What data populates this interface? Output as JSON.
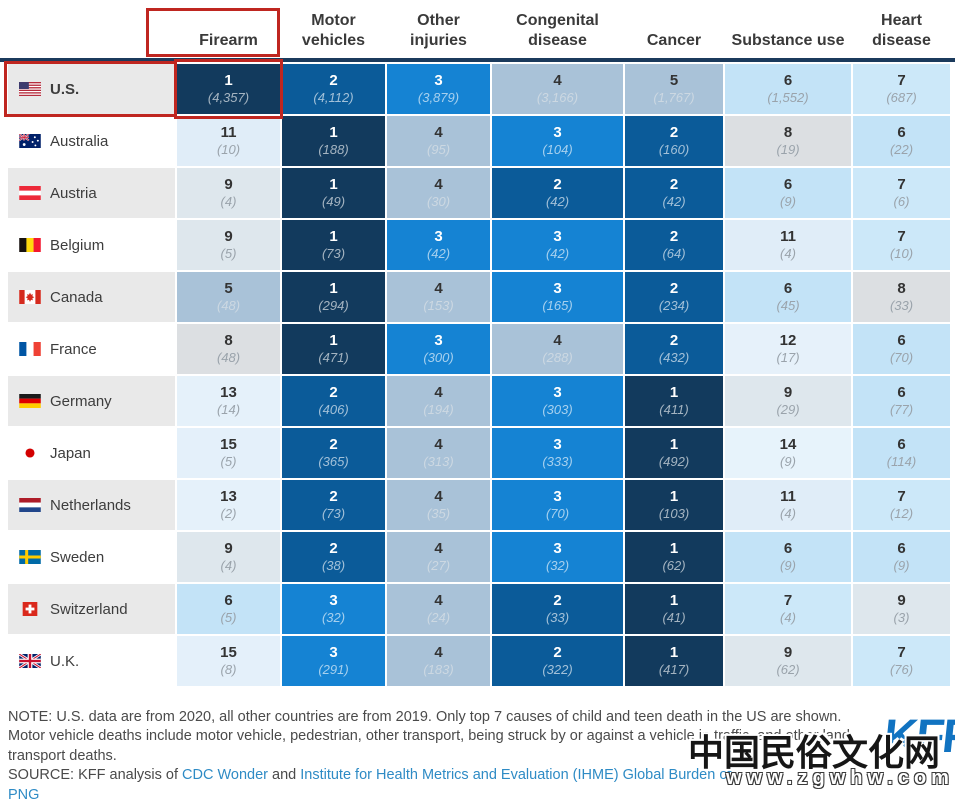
{
  "chart_data": {
    "type": "heatmap",
    "description": "Ranking of causes of child and teen death by country; cell shade encodes rank (darker blue = higher rank), value in parentheses = number of deaths",
    "columns": [
      "Firearm",
      "Motor vehicles",
      "Other injuries",
      "Congenital disease",
      "Cancer",
      "Substance use",
      "Heart disease"
    ],
    "highlight": {
      "column": "Firearm",
      "row": "U.S."
    },
    "rows": [
      {
        "country": "U.S.",
        "flag": "us",
        "cells": [
          {
            "rank": 1,
            "deaths": "(4,357)"
          },
          {
            "rank": 2,
            "deaths": "(4,112)"
          },
          {
            "rank": 3,
            "deaths": "(3,879)"
          },
          {
            "rank": 4,
            "deaths": "(3,166)"
          },
          {
            "rank": 5,
            "deaths": "(1,767)"
          },
          {
            "rank": 6,
            "deaths": "(1,552)"
          },
          {
            "rank": 7,
            "deaths": "(687)"
          }
        ]
      },
      {
        "country": "Australia",
        "flag": "australia",
        "cells": [
          {
            "rank": 11,
            "deaths": "(10)"
          },
          {
            "rank": 1,
            "deaths": "(188)"
          },
          {
            "rank": 4,
            "deaths": "(95)"
          },
          {
            "rank": 3,
            "deaths": "(104)"
          },
          {
            "rank": 2,
            "deaths": "(160)"
          },
          {
            "rank": 8,
            "deaths": "(19)"
          },
          {
            "rank": 6,
            "deaths": "(22)"
          }
        ]
      },
      {
        "country": "Austria",
        "flag": "austria",
        "cells": [
          {
            "rank": 9,
            "deaths": "(4)"
          },
          {
            "rank": 1,
            "deaths": "(49)"
          },
          {
            "rank": 4,
            "deaths": "(30)"
          },
          {
            "rank": 2,
            "deaths": "(42)"
          },
          {
            "rank": 2,
            "deaths": "(42)"
          },
          {
            "rank": 6,
            "deaths": "(9)"
          },
          {
            "rank": 7,
            "deaths": "(6)"
          }
        ]
      },
      {
        "country": "Belgium",
        "flag": "belgium",
        "cells": [
          {
            "rank": 9,
            "deaths": "(5)"
          },
          {
            "rank": 1,
            "deaths": "(73)"
          },
          {
            "rank": 3,
            "deaths": "(42)"
          },
          {
            "rank": 3,
            "deaths": "(42)"
          },
          {
            "rank": 2,
            "deaths": "(64)"
          },
          {
            "rank": 11,
            "deaths": "(4)"
          },
          {
            "rank": 7,
            "deaths": "(10)"
          }
        ]
      },
      {
        "country": "Canada",
        "flag": "canada",
        "cells": [
          {
            "rank": 5,
            "deaths": "(48)"
          },
          {
            "rank": 1,
            "deaths": "(294)"
          },
          {
            "rank": 4,
            "deaths": "(153)"
          },
          {
            "rank": 3,
            "deaths": "(165)"
          },
          {
            "rank": 2,
            "deaths": "(234)"
          },
          {
            "rank": 6,
            "deaths": "(45)"
          },
          {
            "rank": 8,
            "deaths": "(33)"
          }
        ]
      },
      {
        "country": "France",
        "flag": "france",
        "cells": [
          {
            "rank": 8,
            "deaths": "(48)"
          },
          {
            "rank": 1,
            "deaths": "(471)"
          },
          {
            "rank": 3,
            "deaths": "(300)"
          },
          {
            "rank": 4,
            "deaths": "(288)"
          },
          {
            "rank": 2,
            "deaths": "(432)"
          },
          {
            "rank": 12,
            "deaths": "(17)"
          },
          {
            "rank": 6,
            "deaths": "(70)"
          }
        ]
      },
      {
        "country": "Germany",
        "flag": "germany",
        "cells": [
          {
            "rank": 13,
            "deaths": "(14)"
          },
          {
            "rank": 2,
            "deaths": "(406)"
          },
          {
            "rank": 4,
            "deaths": "(194)"
          },
          {
            "rank": 3,
            "deaths": "(303)"
          },
          {
            "rank": 1,
            "deaths": "(411)"
          },
          {
            "rank": 9,
            "deaths": "(29)"
          },
          {
            "rank": 6,
            "deaths": "(77)"
          }
        ]
      },
      {
        "country": "Japan",
        "flag": "japan",
        "cells": [
          {
            "rank": 15,
            "deaths": "(5)"
          },
          {
            "rank": 2,
            "deaths": "(365)"
          },
          {
            "rank": 4,
            "deaths": "(313)"
          },
          {
            "rank": 3,
            "deaths": "(333)"
          },
          {
            "rank": 1,
            "deaths": "(492)"
          },
          {
            "rank": 14,
            "deaths": "(9)"
          },
          {
            "rank": 6,
            "deaths": "(114)"
          }
        ]
      },
      {
        "country": "Netherlands",
        "flag": "netherlands",
        "cells": [
          {
            "rank": 13,
            "deaths": "(2)"
          },
          {
            "rank": 2,
            "deaths": "(73)"
          },
          {
            "rank": 4,
            "deaths": "(35)"
          },
          {
            "rank": 3,
            "deaths": "(70)"
          },
          {
            "rank": 1,
            "deaths": "(103)"
          },
          {
            "rank": 11,
            "deaths": "(4)"
          },
          {
            "rank": 7,
            "deaths": "(12)"
          }
        ]
      },
      {
        "country": "Sweden",
        "flag": "sweden",
        "cells": [
          {
            "rank": 9,
            "deaths": "(4)"
          },
          {
            "rank": 2,
            "deaths": "(38)"
          },
          {
            "rank": 4,
            "deaths": "(27)"
          },
          {
            "rank": 3,
            "deaths": "(32)"
          },
          {
            "rank": 1,
            "deaths": "(62)"
          },
          {
            "rank": 6,
            "deaths": "(9)"
          },
          {
            "rank": 6,
            "deaths": "(9)"
          }
        ]
      },
      {
        "country": "Switzerland",
        "flag": "switzerland",
        "cells": [
          {
            "rank": 6,
            "deaths": "(5)"
          },
          {
            "rank": 3,
            "deaths": "(32)"
          },
          {
            "rank": 4,
            "deaths": "(24)"
          },
          {
            "rank": 2,
            "deaths": "(33)"
          },
          {
            "rank": 1,
            "deaths": "(41)"
          },
          {
            "rank": 7,
            "deaths": "(4)"
          },
          {
            "rank": 9,
            "deaths": "(3)"
          }
        ]
      },
      {
        "country": "U.K.",
        "flag": "uk",
        "cells": [
          {
            "rank": 15,
            "deaths": "(8)"
          },
          {
            "rank": 3,
            "deaths": "(291)"
          },
          {
            "rank": 4,
            "deaths": "(183)"
          },
          {
            "rank": 2,
            "deaths": "(322)"
          },
          {
            "rank": 1,
            "deaths": "(417)"
          },
          {
            "rank": 9,
            "deaths": "(62)"
          },
          {
            "rank": 7,
            "deaths": "(76)"
          }
        ]
      }
    ]
  },
  "colors": {
    "rank_bg": {
      "1": "#123a5d",
      "2": "#0b5b99",
      "3": "#1583d3",
      "4": "#a9c2d8",
      "5": "#a9c2d8",
      "6": "#c3e3f7",
      "7": "#cce8f9",
      "8": "#dcdfe2",
      "9": "#dee7ed",
      "11": "#e0edf8",
      "12": "#e6f1fa",
      "13": "#e5f1fa",
      "14": "#e7f3fb",
      "15": "#e4f0fa"
    },
    "rank_text_dark_bg": "#ffffff",
    "count_text_dark_bg": "rgba(255,255,255,0.62)",
    "rank_text_light_bg": "#333333",
    "count_text_light_bg": "#9aa3ab",
    "count_text_mid_bg": "#ccd8e2",
    "row_alt": "#e9e9e9",
    "divider": "#1b3a5c",
    "highlight_red": "#bf2620",
    "link": "#2e8bc5",
    "kff_blue": "#1173c1"
  },
  "footer": {
    "note_line1": "NOTE: U.S. data are from 2020, all other countries are from 2019. Only top 7 causes of child and teen death in the US are shown.",
    "note_line2": "Motor vehicle deaths include motor vehicle, pedestrian, other transport, being struck by or against a vehicle in traffic, and other land transport deaths.",
    "source_prefix": "SOURCE: KFF analysis of ",
    "source_link1": "CDC Wonder",
    "source_and": " and ",
    "source_link2": "Institute for Health Metrics and Evaluation (IHME) Global Burden of",
    "png_link": "PNG",
    "kff_logo": "KFF"
  },
  "watermark": {
    "cn_text": "中国民俗文化网",
    "url_text": "www.zgwhw.com"
  }
}
